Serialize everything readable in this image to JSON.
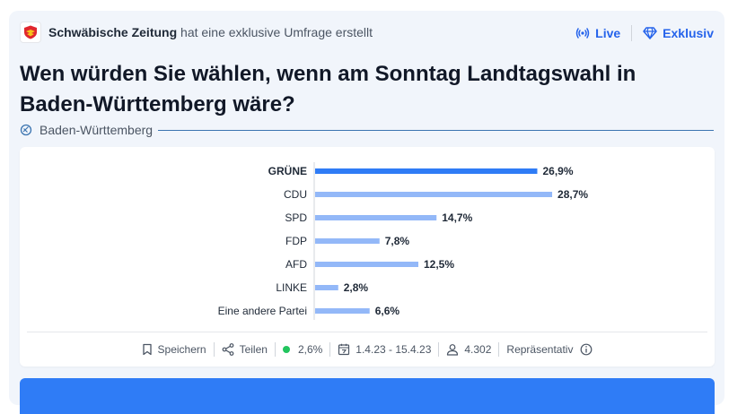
{
  "header": {
    "publisher": "Schwäbische Zeitung",
    "publisher_suffix": "hat eine exklusive Umfrage erstellt",
    "live_label": "Live",
    "exclusive_label": "Exklusiv"
  },
  "poll": {
    "title": "Wen würden Sie wählen, wenn am Sonntag Landtagswahl in Baden-Württemberg wäre?",
    "region": "Baden-Württemberg"
  },
  "colors": {
    "accent": "#2563eb",
    "bar_selected": "#2f7cf6",
    "bar_default": "#93b8f8",
    "status_dot": "#22c55e",
    "cta": "#2f7cf6"
  },
  "chart_data": {
    "type": "bar",
    "orientation": "horizontal",
    "categories": [
      "GRÜNE",
      "CDU",
      "SPD",
      "FDP",
      "AFD",
      "LINKE",
      "Eine andere Partei"
    ],
    "values": [
      26.9,
      28.7,
      14.7,
      7.8,
      12.5,
      2.8,
      6.6
    ],
    "labels": [
      "26,9%",
      "28,7%",
      "14,7%",
      "7,8%",
      "12,5%",
      "2,8%",
      "6,6%"
    ],
    "highlighted": "GRÜNE",
    "unit": "%",
    "xlim": [
      0,
      30
    ]
  },
  "footer": {
    "save_label": "Speichern",
    "share_label": "Teilen",
    "error_margin": "2,6%",
    "date_range": "1.4.23 - 15.4.23",
    "participants": "4.302",
    "representative_label": "Repräsentativ"
  }
}
